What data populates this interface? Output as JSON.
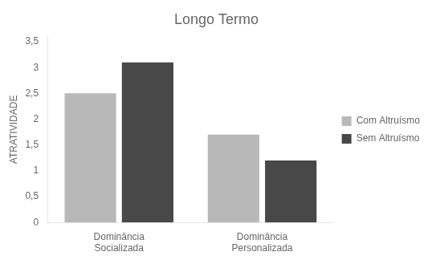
{
  "chart_data": {
    "type": "bar",
    "title": "Longo Termo",
    "ylabel": "ATRATIVIDADE",
    "categories": [
      "Dominância\nSocializada",
      "Dominância\nPersonalizada"
    ],
    "series": [
      {
        "name": "Com Altruísmo",
        "color": "#b8b8b8",
        "values": [
          2.5,
          1.7
        ]
      },
      {
        "name": "Sem Altruísmo",
        "color": "#484848",
        "values": [
          3.1,
          1.2
        ]
      }
    ],
    "ylim": [
      0,
      3.6
    ],
    "yticks": [
      0,
      {
        "value": 0.5,
        "label": "0,5"
      },
      1,
      {
        "value": 1.5,
        "label": "1,5"
      },
      2,
      {
        "value": 2.5,
        "label": "2,5"
      },
      3,
      {
        "value": 3.5,
        "label": "3,5"
      }
    ],
    "grid": false,
    "legend": "right"
  }
}
